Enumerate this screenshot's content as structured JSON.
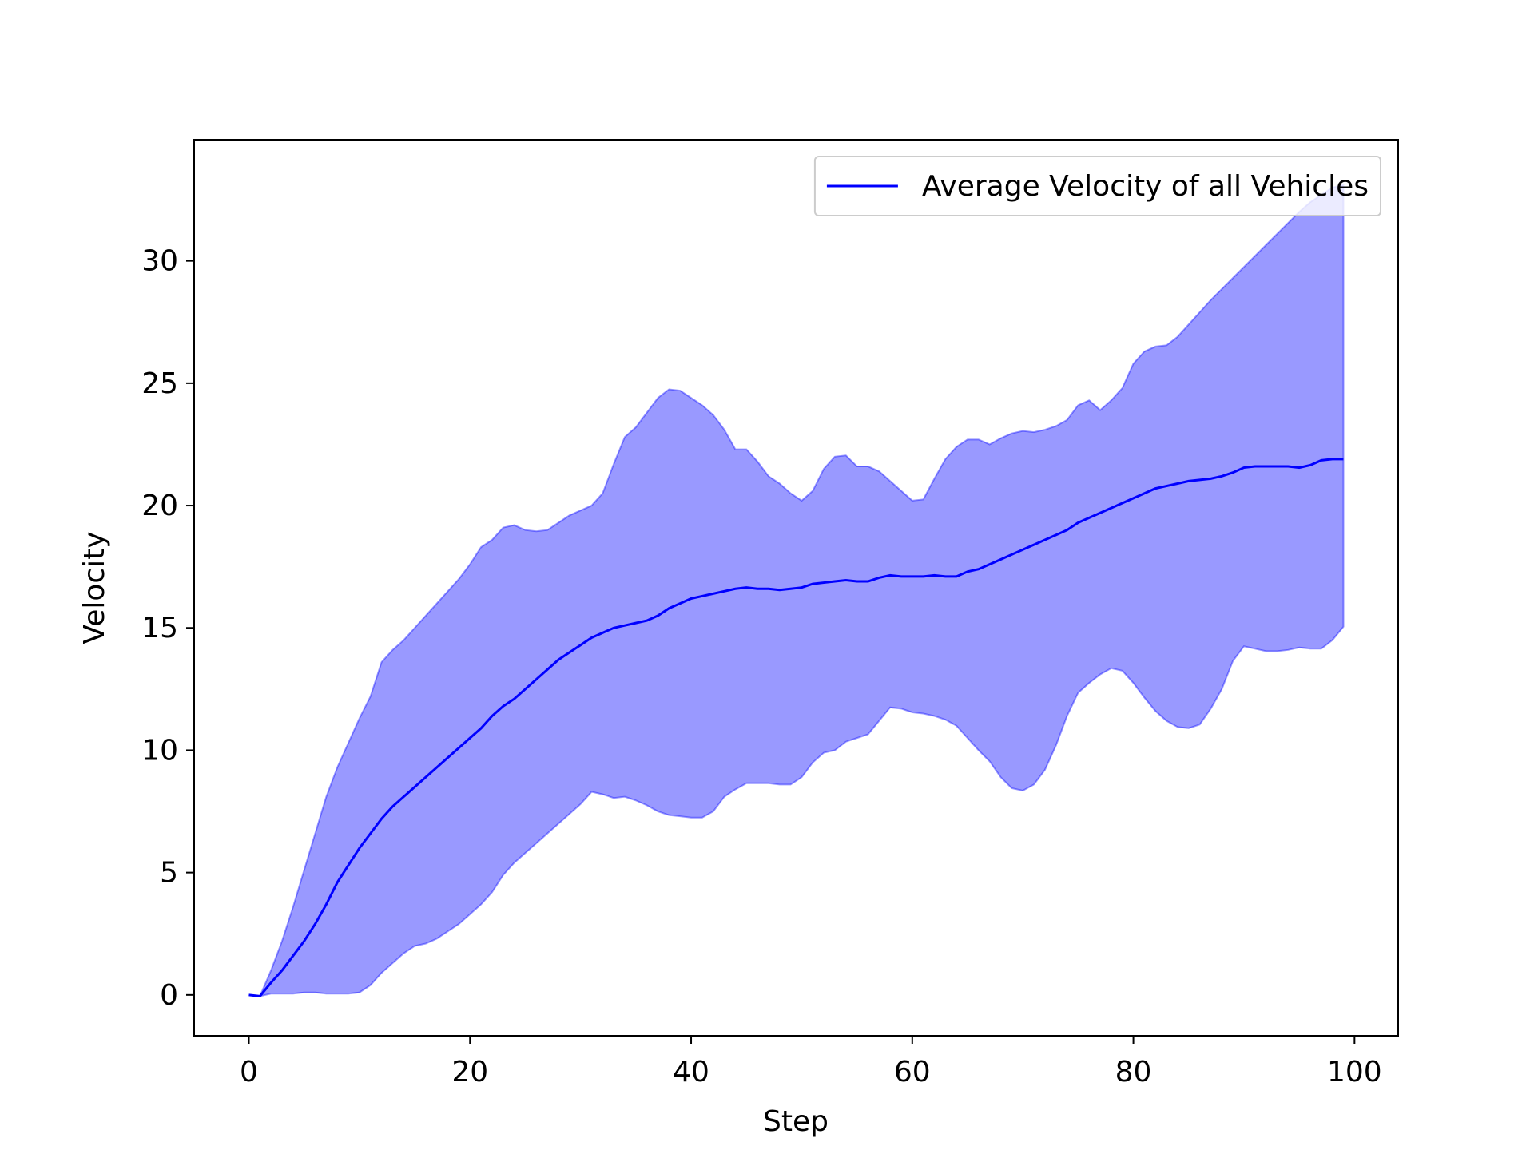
{
  "chart_data": {
    "type": "line",
    "xlabel": "Step",
    "ylabel": "Velocity",
    "x": [
      0,
      1,
      2,
      3,
      4,
      5,
      6,
      7,
      8,
      9,
      10,
      11,
      12,
      13,
      14,
      15,
      16,
      17,
      18,
      19,
      20,
      21,
      22,
      23,
      24,
      25,
      26,
      27,
      28,
      29,
      30,
      31,
      32,
      33,
      34,
      35,
      36,
      37,
      38,
      39,
      40,
      41,
      42,
      43,
      44,
      45,
      46,
      47,
      48,
      49,
      50,
      51,
      52,
      53,
      54,
      55,
      56,
      57,
      58,
      59,
      60,
      61,
      62,
      63,
      64,
      65,
      66,
      67,
      68,
      69,
      70,
      71,
      72,
      73,
      74,
      75,
      76,
      77,
      78,
      79,
      80,
      81,
      82,
      83,
      84,
      85,
      86,
      87,
      88,
      89,
      90,
      91,
      92,
      93,
      94,
      95,
      96,
      97,
      98,
      99
    ],
    "series": [
      {
        "name": "Average Velocity of all Vehicles",
        "color": "#0000ff",
        "values": [
          0,
          -0.05,
          0.5,
          1.0,
          1.6,
          2.2,
          2.9,
          3.7,
          4.6,
          5.3,
          6.0,
          6.6,
          7.2,
          7.7,
          8.1,
          8.5,
          8.9,
          9.3,
          9.7,
          10.1,
          10.5,
          10.9,
          11.4,
          11.8,
          12.1,
          12.5,
          12.9,
          13.3,
          13.7,
          14.0,
          14.3,
          14.6,
          14.8,
          15.0,
          15.1,
          15.2,
          15.3,
          15.5,
          15.8,
          16.0,
          16.2,
          16.3,
          16.4,
          16.5,
          16.6,
          16.65,
          16.6,
          16.6,
          16.55,
          16.6,
          16.65,
          16.8,
          16.85,
          16.9,
          16.95,
          16.9,
          16.9,
          17.05,
          17.15,
          17.1,
          17.1,
          17.1,
          17.15,
          17.1,
          17.1,
          17.3,
          17.4,
          17.6,
          17.8,
          18.0,
          18.2,
          18.4,
          18.6,
          18.8,
          19.0,
          19.3,
          19.5,
          19.7,
          19.9,
          20.1,
          20.3,
          20.5,
          20.7,
          20.8,
          20.9,
          21.0,
          21.05,
          21.1,
          21.2,
          21.35,
          21.55,
          21.6,
          21.6,
          21.6,
          21.6,
          21.55,
          21.65,
          21.85,
          21.9,
          21.9
        ]
      }
    ],
    "band": {
      "color": "#0000ff",
      "alpha": 0.4,
      "upper": [
        0,
        -0.05,
        1.0,
        2.2,
        3.6,
        5.1,
        6.6,
        8.1,
        9.3,
        10.3,
        11.3,
        12.2,
        13.6,
        14.1,
        14.5,
        15.0,
        15.5,
        16.0,
        16.5,
        17.0,
        17.6,
        18.3,
        18.6,
        19.1,
        19.2,
        19.0,
        18.95,
        19.0,
        19.3,
        19.6,
        19.8,
        20.0,
        20.5,
        21.7,
        22.8,
        23.2,
        23.8,
        24.4,
        24.75,
        24.7,
        24.4,
        24.1,
        23.7,
        23.1,
        22.3,
        22.3,
        21.8,
        21.2,
        20.9,
        20.5,
        20.2,
        20.6,
        21.5,
        22.0,
        22.05,
        21.6,
        21.6,
        21.4,
        21.0,
        20.6,
        20.2,
        20.25,
        21.1,
        21.9,
        22.4,
        22.7,
        22.7,
        22.5,
        22.75,
        22.95,
        23.05,
        23.0,
        23.1,
        23.25,
        23.5,
        24.1,
        24.3,
        23.9,
        24.3,
        24.8,
        25.8,
        26.3,
        26.5,
        26.55,
        26.9,
        27.4,
        27.9,
        28.4,
        28.85,
        29.3,
        29.75,
        30.2,
        30.65,
        31.1,
        31.55,
        32.0,
        32.4,
        32.7,
        33.0,
        33.1
      ],
      "lower": [
        0,
        -0.05,
        0.05,
        0.05,
        0.05,
        0.1,
        0.1,
        0.05,
        0.05,
        0.05,
        0.1,
        0.4,
        0.9,
        1.3,
        1.7,
        2.0,
        2.1,
        2.3,
        2.6,
        2.9,
        3.3,
        3.7,
        4.2,
        4.9,
        5.4,
        5.8,
        6.2,
        6.6,
        7.0,
        7.4,
        7.8,
        8.3,
        8.2,
        8.05,
        8.1,
        7.95,
        7.75,
        7.5,
        7.35,
        7.3,
        7.25,
        7.25,
        7.5,
        8.1,
        8.4,
        8.65,
        8.65,
        8.65,
        8.6,
        8.6,
        8.9,
        9.5,
        9.9,
        10.0,
        10.35,
        10.5,
        10.65,
        11.2,
        11.75,
        11.7,
        11.55,
        11.5,
        11.4,
        11.25,
        11.0,
        10.5,
        10.0,
        9.55,
        8.9,
        8.45,
        8.35,
        8.6,
        9.2,
        10.2,
        11.4,
        12.35,
        12.75,
        13.1,
        13.35,
        13.25,
        12.75,
        12.15,
        11.6,
        11.2,
        10.95,
        10.9,
        11.05,
        11.7,
        12.5,
        13.65,
        14.25,
        14.15,
        14.05,
        14.05,
        14.1,
        14.2,
        14.15,
        14.15,
        14.5,
        15.05
      ]
    },
    "xlim": [
      -4.95,
      103.95
    ],
    "ylim": [
      -1.67,
      34.95
    ],
    "xticks": [
      0,
      20,
      40,
      60,
      80,
      100
    ],
    "yticks": [
      0,
      5,
      10,
      15,
      20,
      25,
      30
    ],
    "legend": "upper right"
  }
}
